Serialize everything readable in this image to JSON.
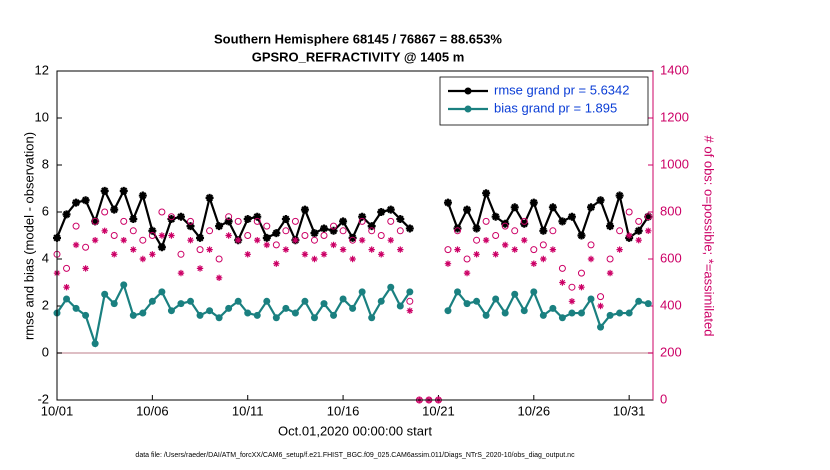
{
  "chart_data": {
    "type": "line",
    "title": "Southern Hemisphere 68145 / 76867 = 88.653%",
    "subtitle": "GPSRO_REFRACTIVITY @ 1405 m",
    "y_label": "rmse and bias (model - observation)",
    "y2_label": "# of obs: o=possible; *=assimilated",
    "x_label": "Oct.01,2020 00:00:00 start",
    "footnote": "data file: /Users/raeder/DAI/ATM_forcXX/CAM6_setup/f.e21.FHIST_BGC.f09_025.CAM6assim.011/Diags_NTrS_2020-10/obs_diag_output.nc",
    "x": [
      0,
      0.5,
      1,
      1.5,
      2,
      2.5,
      3,
      3.5,
      4,
      4.5,
      5,
      5.5,
      6,
      6.5,
      7,
      7.5,
      8,
      8.5,
      9,
      9.5,
      10,
      10.5,
      11,
      11.5,
      12,
      12.5,
      13,
      13.5,
      14,
      14.5,
      15,
      15.5,
      16,
      16.5,
      17,
      17.5,
      18,
      18.5,
      19,
      19.5,
      20,
      20.5,
      21,
      21.5,
      22,
      22.5,
      23,
      23.5,
      24,
      24.5,
      25,
      25.5,
      26,
      26.5,
      27,
      27.5,
      28,
      28.5,
      29,
      29.5,
      30,
      30.5,
      31
    ],
    "xlim": [
      0,
      31.25
    ],
    "xticks": [
      {
        "value": 0,
        "label": "10/01"
      },
      {
        "value": 5,
        "label": "10/06"
      },
      {
        "value": 10,
        "label": "10/11"
      },
      {
        "value": 15,
        "label": "10/16"
      },
      {
        "value": 20,
        "label": "10/21"
      },
      {
        "value": 25,
        "label": "10/26"
      },
      {
        "value": 30,
        "label": "10/31"
      }
    ],
    "ylim": [
      -2,
      12
    ],
    "yticks": [
      -2,
      0,
      2,
      4,
      6,
      8,
      10,
      12
    ],
    "y2lim": [
      0,
      1400
    ],
    "y2ticks": [
      0,
      200,
      400,
      600,
      800,
      1000,
      1200,
      1400
    ],
    "hline": 0,
    "hline_color": "#d4a8b0",
    "legend": "upper right",
    "legend_text_color": "#0a3dd6",
    "y2_color": "#cc0066",
    "series": [
      {
        "name": "rmse grand pr = 5.6342",
        "color": "#000000",
        "marker": "star",
        "values": [
          4.9,
          5.9,
          6.4,
          6.5,
          5.6,
          6.9,
          6.1,
          6.9,
          5.7,
          6.7,
          5.2,
          4.5,
          5.7,
          5.8,
          5.4,
          4.9,
          6.6,
          5.4,
          5.6,
          4.8,
          5.7,
          5.8,
          4.9,
          5.1,
          5.7,
          4.8,
          6.1,
          5.1,
          5.3,
          5.2,
          5.6,
          4.9,
          5.8,
          5.4,
          6.0,
          6.1,
          5.7,
          5.3,
          null,
          null,
          null,
          6.4,
          5.3,
          6.1,
          5.3,
          6.8,
          5.8,
          5.5,
          6.2,
          5.5,
          6.4,
          5.2,
          6.2,
          5.6,
          5.8,
          5.0,
          6.2,
          6.5,
          5.4,
          6.7,
          4.9,
          5.2,
          5.8
        ]
      },
      {
        "name": "bias grand pr = 1.895",
        "color": "#1a8080",
        "marker": "dot",
        "values": [
          1.7,
          2.3,
          1.9,
          1.6,
          0.4,
          2.5,
          2.1,
          2.9,
          1.6,
          1.7,
          2.2,
          2.6,
          1.8,
          2.1,
          2.2,
          1.6,
          1.8,
          1.5,
          1.9,
          2.2,
          1.7,
          1.6,
          2.2,
          1.5,
          1.9,
          1.7,
          2.2,
          1.5,
          2.1,
          1.6,
          2.3,
          1.9,
          2.6,
          1.5,
          2.2,
          2.8,
          2.0,
          2.6,
          null,
          null,
          null,
          1.8,
          2.6,
          2.1,
          2.2,
          1.6,
          2.3,
          1.7,
          2.5,
          1.8,
          2.6,
          1.6,
          1.9,
          1.5,
          1.7,
          1.7,
          2.3,
          1.1,
          1.6,
          1.7,
          1.7,
          2.2,
          2.1
        ]
      },
      {
        "color": "#cc0066",
        "marker": "open-circle",
        "axis": "y2",
        "values": [
          620,
          560,
          740,
          650,
          760,
          800,
          700,
          760,
          720,
          680,
          700,
          800,
          780,
          620,
          760,
          640,
          720,
          600,
          780,
          760,
          700,
          760,
          740,
          660,
          720,
          760,
          700,
          680,
          700,
          740,
          720,
          680,
          760,
          720,
          700,
          760,
          720,
          420,
          0,
          0,
          0,
          640,
          720,
          600,
          680,
          760,
          700,
          740,
          720,
          760,
          640,
          660,
          720,
          560,
          480,
          540,
          660,
          440,
          600,
          720,
          800,
          760,
          780
        ]
      },
      {
        "color": "#cc0066",
        "marker": "asterisk",
        "axis": "y2",
        "values": [
          540,
          480,
          660,
          560,
          680,
          720,
          620,
          680,
          640,
          600,
          620,
          700,
          700,
          540,
          680,
          560,
          640,
          520,
          700,
          680,
          620,
          680,
          660,
          580,
          640,
          680,
          620,
          600,
          620,
          660,
          640,
          600,
          680,
          640,
          620,
          680,
          640,
          380,
          0,
          0,
          0,
          580,
          640,
          540,
          620,
          680,
          620,
          660,
          640,
          680,
          580,
          600,
          640,
          500,
          420,
          480,
          600,
          400,
          540,
          640,
          700,
          680,
          720
        ]
      }
    ]
  }
}
